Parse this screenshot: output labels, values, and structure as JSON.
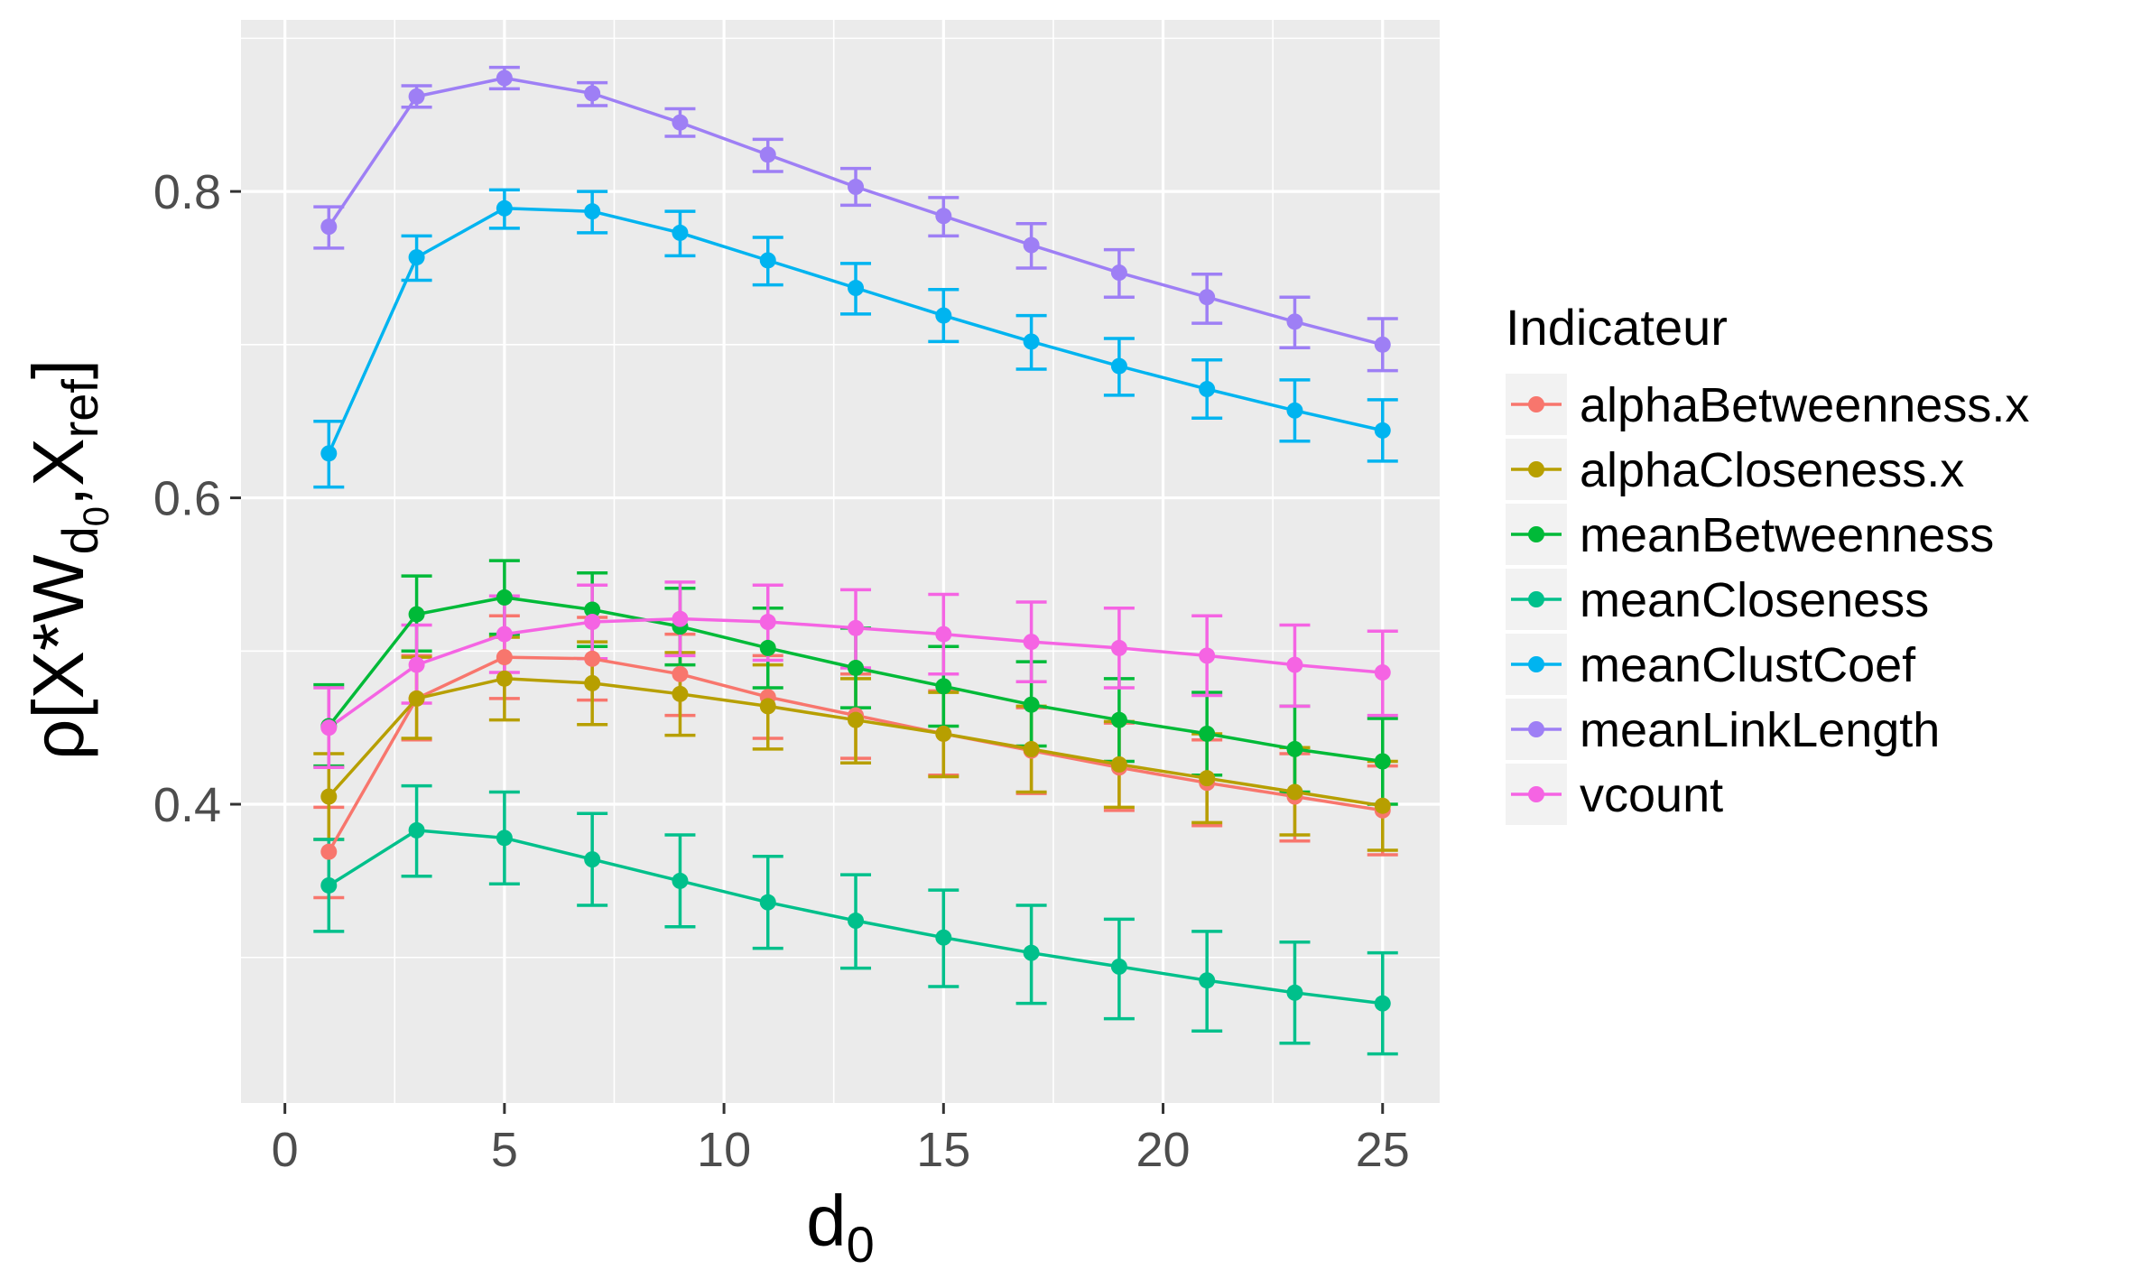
{
  "chart_data": {
    "type": "line",
    "xlabel": {
      "main": "d",
      "sub": "0"
    },
    "ylabel": {
      "rho": "ρ",
      "open": "[X*W",
      "sub1": "d",
      "sub2": "0",
      "mid": ",X",
      "sub3": "ref",
      "close": "]"
    },
    "xlim": [
      -1,
      26.3
    ],
    "ylim": [
      0.205,
      0.912
    ],
    "x_ticks": [
      0,
      5,
      10,
      15,
      20,
      25
    ],
    "x_tick_labels": [
      "0",
      "5",
      "10",
      "15",
      "20",
      "25"
    ],
    "y_ticks": [
      0.4,
      0.6,
      0.8
    ],
    "y_tick_labels": [
      "0.4",
      "0.6",
      "0.8"
    ],
    "grid": true,
    "error_bars": true,
    "legend_title": "Indicateur",
    "legend_position": "right",
    "x": [
      1,
      3,
      5,
      7,
      9,
      11,
      13,
      15,
      17,
      19,
      21,
      23,
      25
    ],
    "series": [
      {
        "name": "alphaBetweenness.x",
        "color": "#F8766D",
        "values": [
          0.369,
          0.469,
          0.496,
          0.495,
          0.485,
          0.47,
          0.458,
          0.446,
          0.435,
          0.424,
          0.414,
          0.405,
          0.396
        ],
        "lower": [
          0.339,
          0.442,
          0.469,
          0.468,
          0.458,
          0.443,
          0.43,
          0.419,
          0.407,
          0.396,
          0.386,
          0.376,
          0.367
        ],
        "upper": [
          0.398,
          0.497,
          0.523,
          0.522,
          0.511,
          0.497,
          0.485,
          0.474,
          0.463,
          0.453,
          0.442,
          0.433,
          0.425
        ]
      },
      {
        "name": "alphaCloseness.x",
        "color": "#B79F00",
        "values": [
          0.405,
          0.469,
          0.482,
          0.479,
          0.472,
          0.464,
          0.455,
          0.446,
          0.436,
          0.426,
          0.417,
          0.408,
          0.399
        ],
        "lower": [
          0.377,
          0.443,
          0.455,
          0.452,
          0.445,
          0.436,
          0.427,
          0.418,
          0.408,
          0.398,
          0.388,
          0.38,
          0.37
        ],
        "upper": [
          0.433,
          0.496,
          0.509,
          0.506,
          0.499,
          0.491,
          0.482,
          0.473,
          0.464,
          0.454,
          0.446,
          0.437,
          0.428
        ]
      },
      {
        "name": "meanBetweenness",
        "color": "#00BA38",
        "values": [
          0.451,
          0.524,
          0.535,
          0.527,
          0.516,
          0.502,
          0.489,
          0.477,
          0.465,
          0.455,
          0.446,
          0.436,
          0.428
        ],
        "lower": [
          0.425,
          0.5,
          0.511,
          0.503,
          0.491,
          0.476,
          0.463,
          0.451,
          0.438,
          0.428,
          0.419,
          0.408,
          0.4
        ],
        "upper": [
          0.478,
          0.549,
          0.559,
          0.551,
          0.541,
          0.528,
          0.515,
          0.503,
          0.493,
          0.482,
          0.473,
          0.464,
          0.456
        ]
      },
      {
        "name": "meanCloseness",
        "color": "#00C08B",
        "values": [
          0.347,
          0.383,
          0.378,
          0.364,
          0.35,
          0.336,
          0.324,
          0.313,
          0.303,
          0.294,
          0.285,
          0.277,
          0.27
        ],
        "lower": [
          0.317,
          0.353,
          0.348,
          0.334,
          0.32,
          0.306,
          0.293,
          0.281,
          0.27,
          0.26,
          0.252,
          0.244,
          0.237
        ],
        "upper": [
          0.377,
          0.412,
          0.408,
          0.394,
          0.38,
          0.366,
          0.354,
          0.344,
          0.334,
          0.325,
          0.317,
          0.31,
          0.303
        ]
      },
      {
        "name": "meanClustCoef",
        "color": "#00B4F0",
        "values": [
          0.629,
          0.757,
          0.789,
          0.787,
          0.773,
          0.755,
          0.737,
          0.719,
          0.702,
          0.686,
          0.671,
          0.657,
          0.644
        ],
        "lower": [
          0.607,
          0.742,
          0.776,
          0.773,
          0.758,
          0.739,
          0.72,
          0.702,
          0.684,
          0.667,
          0.652,
          0.637,
          0.624
        ],
        "upper": [
          0.65,
          0.771,
          0.801,
          0.8,
          0.787,
          0.77,
          0.753,
          0.736,
          0.719,
          0.704,
          0.69,
          0.677,
          0.664
        ]
      },
      {
        "name": "meanLinkLength",
        "color": "#9E7FF5",
        "values": [
          0.777,
          0.862,
          0.874,
          0.864,
          0.845,
          0.824,
          0.803,
          0.784,
          0.765,
          0.747,
          0.731,
          0.715,
          0.7
        ],
        "lower": [
          0.763,
          0.855,
          0.867,
          0.856,
          0.836,
          0.813,
          0.791,
          0.771,
          0.75,
          0.731,
          0.714,
          0.698,
          0.683
        ],
        "upper": [
          0.79,
          0.869,
          0.881,
          0.871,
          0.854,
          0.834,
          0.815,
          0.796,
          0.779,
          0.762,
          0.746,
          0.731,
          0.717
        ]
      },
      {
        "name": "vcount",
        "color": "#F564E3",
        "values": [
          0.45,
          0.491,
          0.511,
          0.519,
          0.521,
          0.519,
          0.515,
          0.511,
          0.506,
          0.502,
          0.497,
          0.491,
          0.486
        ],
        "lower": [
          0.424,
          0.466,
          0.486,
          0.495,
          0.497,
          0.494,
          0.489,
          0.485,
          0.48,
          0.476,
          0.471,
          0.464,
          0.458
        ],
        "upper": [
          0.476,
          0.517,
          0.536,
          0.543,
          0.545,
          0.543,
          0.54,
          0.537,
          0.532,
          0.528,
          0.523,
          0.517,
          0.513
        ]
      }
    ]
  }
}
